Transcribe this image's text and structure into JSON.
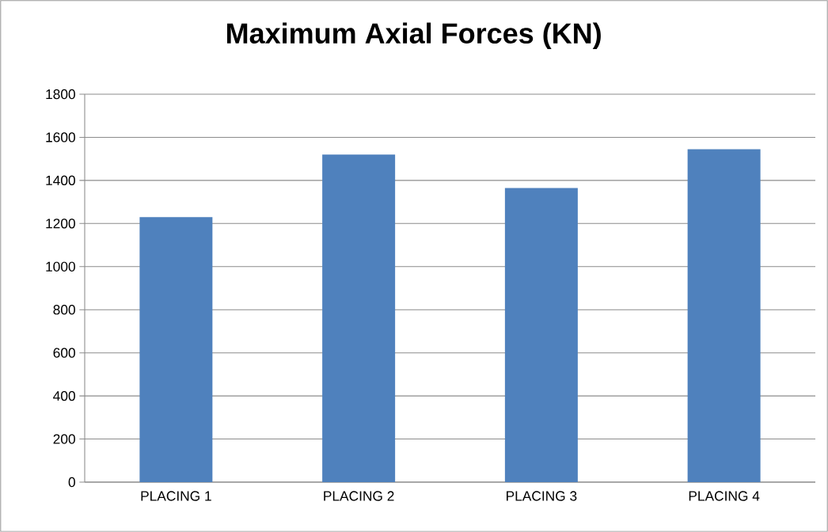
{
  "chart_data": {
    "type": "bar",
    "title": "Maximum Axial Forces (KN)",
    "categories": [
      "PLACING 1",
      "PLACING 2",
      "PLACING 3",
      "PLACING 4"
    ],
    "values": [
      1230,
      1520,
      1365,
      1545
    ],
    "color": "#4f81bd",
    "ylim": [
      0,
      1800
    ],
    "yticks": [
      0,
      200,
      400,
      600,
      800,
      1000,
      1200,
      1400,
      1600,
      1800
    ],
    "grid": "y"
  }
}
